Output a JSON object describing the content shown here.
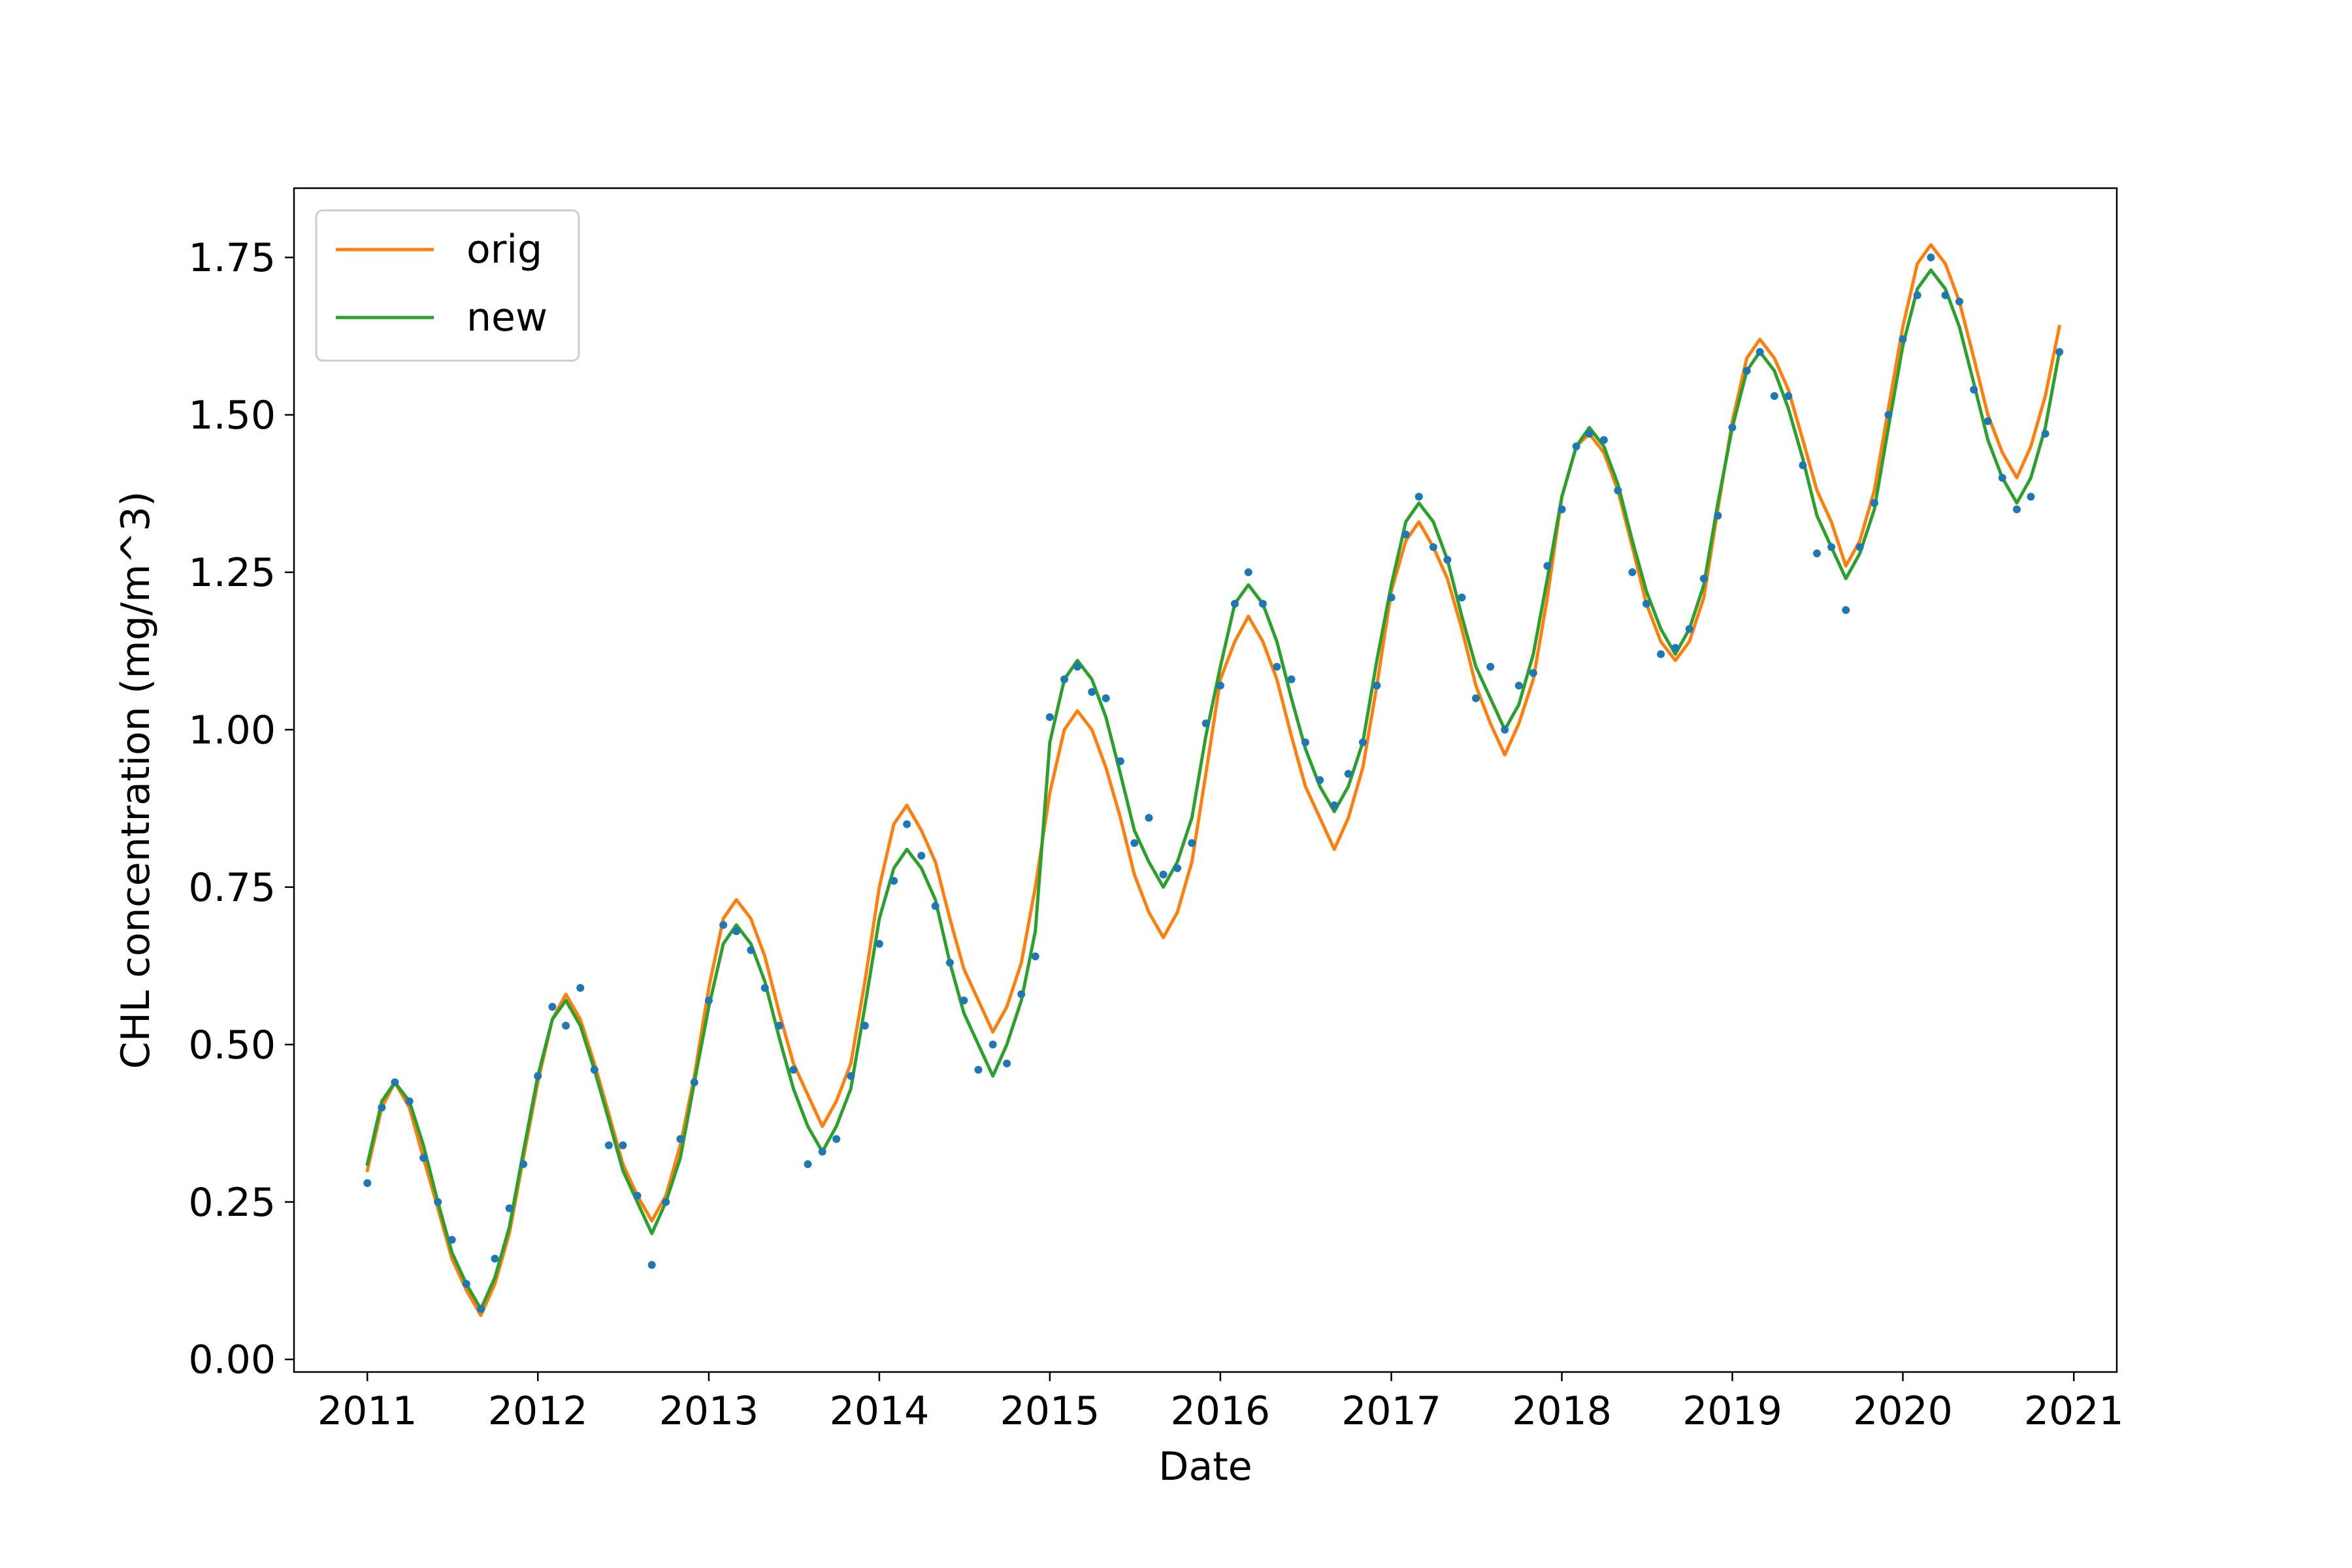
{
  "chart_data": {
    "type": "line",
    "title": "",
    "xlabel": "Date",
    "ylabel": "CHL concentration (mg/m^3)",
    "xlim": [
      "2010-07-28",
      "2021-04-03"
    ],
    "ylim": [
      -0.02,
      1.86
    ],
    "x_ticks": [
      "2011",
      "2012",
      "2013",
      "2014",
      "2015",
      "2016",
      "2017",
      "2018",
      "2019",
      "2020",
      "2021"
    ],
    "y_ticks": [
      "0.00",
      "0.25",
      "0.50",
      "0.75",
      "1.00",
      "1.25",
      "1.50",
      "1.75"
    ],
    "grid": false,
    "legend": {
      "location": "upper-left",
      "entries": [
        "orig",
        "new"
      ]
    },
    "colors": {
      "orig": "#ff7f0e",
      "new": "#2ca02c",
      "observed": "#1f77b4"
    },
    "x": [
      "2011-01",
      "2011-02",
      "2011-03",
      "2011-04",
      "2011-05",
      "2011-06",
      "2011-07",
      "2011-08",
      "2011-09",
      "2011-10",
      "2011-11",
      "2011-12",
      "2012-01",
      "2012-02",
      "2012-03",
      "2012-04",
      "2012-05",
      "2012-06",
      "2012-07",
      "2012-08",
      "2012-09",
      "2012-10",
      "2012-11",
      "2012-12",
      "2013-01",
      "2013-02",
      "2013-03",
      "2013-04",
      "2013-05",
      "2013-06",
      "2013-07",
      "2013-08",
      "2013-09",
      "2013-10",
      "2013-11",
      "2013-12",
      "2014-01",
      "2014-02",
      "2014-03",
      "2014-04",
      "2014-05",
      "2014-06",
      "2014-07",
      "2014-08",
      "2014-09",
      "2014-10",
      "2014-11",
      "2014-12",
      "2015-01",
      "2015-02",
      "2015-03",
      "2015-04",
      "2015-05",
      "2015-06",
      "2015-07",
      "2015-08",
      "2015-09",
      "2015-10",
      "2015-11",
      "2015-12",
      "2016-01",
      "2016-02",
      "2016-03",
      "2016-04",
      "2016-05",
      "2016-06",
      "2016-07",
      "2016-08",
      "2016-09",
      "2016-10",
      "2016-11",
      "2016-12",
      "2017-01",
      "2017-02",
      "2017-03",
      "2017-04",
      "2017-05",
      "2017-06",
      "2017-07",
      "2017-08",
      "2017-09",
      "2017-10",
      "2017-11",
      "2017-12",
      "2018-01",
      "2018-02",
      "2018-03",
      "2018-04",
      "2018-05",
      "2018-06",
      "2018-07",
      "2018-08",
      "2018-09",
      "2018-10",
      "2018-11",
      "2018-12",
      "2019-01",
      "2019-02",
      "2019-03",
      "2019-04",
      "2019-05",
      "2019-06",
      "2019-07",
      "2019-08",
      "2019-09",
      "2019-10",
      "2019-11",
      "2019-12",
      "2020-01",
      "2020-02",
      "2020-03",
      "2020-04",
      "2020-05",
      "2020-06",
      "2020-07",
      "2020-08",
      "2020-09",
      "2020-10",
      "2020-11",
      "2020-12"
    ],
    "series": [
      {
        "name": "orig",
        "kind": "line",
        "values": [
          0.3,
          0.4,
          0.44,
          0.4,
          0.32,
          0.24,
          0.16,
          0.11,
          0.07,
          0.12,
          0.2,
          0.32,
          0.44,
          0.54,
          0.58,
          0.54,
          0.47,
          0.39,
          0.31,
          0.26,
          0.22,
          0.26,
          0.34,
          0.45,
          0.59,
          0.7,
          0.73,
          0.7,
          0.64,
          0.55,
          0.47,
          0.42,
          0.37,
          0.41,
          0.47,
          0.6,
          0.75,
          0.85,
          0.88,
          0.84,
          0.79,
          0.7,
          0.62,
          0.57,
          0.52,
          0.56,
          0.63,
          0.75,
          0.9,
          1.0,
          1.03,
          1.0,
          0.94,
          0.86,
          0.77,
          0.71,
          0.67,
          0.71,
          0.79,
          0.93,
          1.08,
          1.14,
          1.18,
          1.14,
          1.08,
          0.99,
          0.91,
          0.86,
          0.81,
          0.86,
          0.94,
          1.07,
          1.22,
          1.3,
          1.33,
          1.29,
          1.24,
          1.16,
          1.07,
          1.01,
          0.96,
          1.01,
          1.08,
          1.21,
          1.37,
          1.45,
          1.47,
          1.44,
          1.38,
          1.29,
          1.2,
          1.14,
          1.11,
          1.14,
          1.21,
          1.35,
          1.49,
          1.59,
          1.62,
          1.59,
          1.54,
          1.46,
          1.38,
          1.33,
          1.26,
          1.3,
          1.38,
          1.51,
          1.64,
          1.74,
          1.77,
          1.74,
          1.68,
          1.59,
          1.5,
          1.44,
          1.4,
          1.45,
          1.53,
          1.64
        ]
      },
      {
        "name": "new",
        "kind": "line",
        "values": [
          0.31,
          0.41,
          0.44,
          0.41,
          0.34,
          0.25,
          0.17,
          0.12,
          0.08,
          0.13,
          0.21,
          0.33,
          0.45,
          0.54,
          0.57,
          0.53,
          0.46,
          0.38,
          0.3,
          0.25,
          0.2,
          0.25,
          0.32,
          0.44,
          0.56,
          0.66,
          0.69,
          0.66,
          0.6,
          0.51,
          0.43,
          0.37,
          0.33,
          0.37,
          0.43,
          0.56,
          0.7,
          0.78,
          0.81,
          0.78,
          0.73,
          0.63,
          0.55,
          0.5,
          0.45,
          0.5,
          0.57,
          0.68,
          0.98,
          1.08,
          1.11,
          1.08,
          1.02,
          0.93,
          0.84,
          0.79,
          0.75,
          0.79,
          0.86,
          0.99,
          1.1,
          1.2,
          1.23,
          1.2,
          1.14,
          1.05,
          0.97,
          0.91,
          0.87,
          0.91,
          0.98,
          1.11,
          1.23,
          1.33,
          1.36,
          1.33,
          1.27,
          1.18,
          1.1,
          1.05,
          1.0,
          1.04,
          1.12,
          1.24,
          1.37,
          1.45,
          1.48,
          1.45,
          1.39,
          1.3,
          1.22,
          1.16,
          1.12,
          1.16,
          1.23,
          1.36,
          1.48,
          1.57,
          1.6,
          1.57,
          1.51,
          1.43,
          1.34,
          1.29,
          1.24,
          1.28,
          1.35,
          1.48,
          1.61,
          1.7,
          1.73,
          1.7,
          1.64,
          1.55,
          1.46,
          1.4,
          1.36,
          1.4,
          1.48,
          1.6
        ]
      },
      {
        "name": "",
        "kind": "scatter",
        "values": [
          0.28,
          0.4,
          0.44,
          0.41,
          0.32,
          0.25,
          0.19,
          0.12,
          0.08,
          0.16,
          0.24,
          0.31,
          0.45,
          0.56,
          0.53,
          0.59,
          0.46,
          0.34,
          0.34,
          0.26,
          0.15,
          0.25,
          0.35,
          0.44,
          0.57,
          0.69,
          0.68,
          0.65,
          0.59,
          0.53,
          0.46,
          0.31,
          0.33,
          0.35,
          0.45,
          0.53,
          0.66,
          0.76,
          0.85,
          0.8,
          0.72,
          0.63,
          0.57,
          0.46,
          0.5,
          0.47,
          0.58,
          0.64,
          1.02,
          1.08,
          1.1,
          1.06,
          1.05,
          0.95,
          0.82,
          0.86,
          0.77,
          0.78,
          0.82,
          1.01,
          1.07,
          1.2,
          1.25,
          1.2,
          1.1,
          1.08,
          0.98,
          0.92,
          0.88,
          0.93,
          0.98,
          1.07,
          1.21,
          1.31,
          1.37,
          1.29,
          1.27,
          1.21,
          1.05,
          1.1,
          1.0,
          1.07,
          1.09,
          1.26,
          1.35,
          1.45,
          1.47,
          1.46,
          1.38,
          1.25,
          1.2,
          1.12,
          1.13,
          1.16,
          1.24,
          1.34,
          1.48,
          1.57,
          1.6,
          1.53,
          1.53,
          1.42,
          1.28,
          1.29,
          1.19,
          1.29,
          1.36,
          1.5,
          1.62,
          1.69,
          1.75,
          1.69,
          1.68,
          1.54,
          1.49,
          1.4,
          1.35,
          1.37,
          1.47,
          1.6
        ]
      }
    ]
  }
}
